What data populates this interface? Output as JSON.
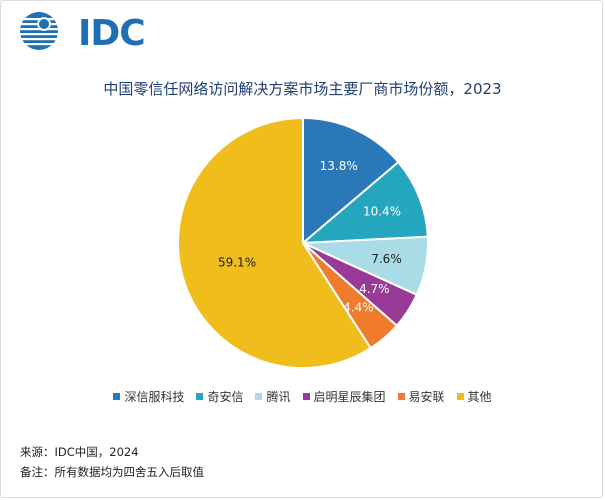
{
  "brand": {
    "logo_text": "IDC",
    "logo_color": "#1f6fb5"
  },
  "chart_data": {
    "type": "pie",
    "title": "中国零信任网络访问解决方案市场主要厂商市场份额，2023",
    "unit": "%",
    "categories": [
      "深信服科技",
      "奇安信",
      "腾讯",
      "启明星辰集团",
      "易安联",
      "其他"
    ],
    "values": [
      13.8,
      10.4,
      7.6,
      4.7,
      4.4,
      59.1
    ],
    "labels": [
      "13.8%",
      "10.4%",
      "7.6%",
      "4.7%",
      "4.4%",
      "59.1%"
    ],
    "colors": [
      "#2a78b8",
      "#25a6bf",
      "#a9dce6",
      "#9a3a97",
      "#ef7b2b",
      "#f0bd1c"
    ],
    "legend_position": "bottom",
    "start_angle_deg": 0,
    "direction": "clockwise"
  },
  "footer": {
    "source": "来源：IDC中国，2024",
    "note": "备注：所有数据均为四舍五入后取值"
  }
}
